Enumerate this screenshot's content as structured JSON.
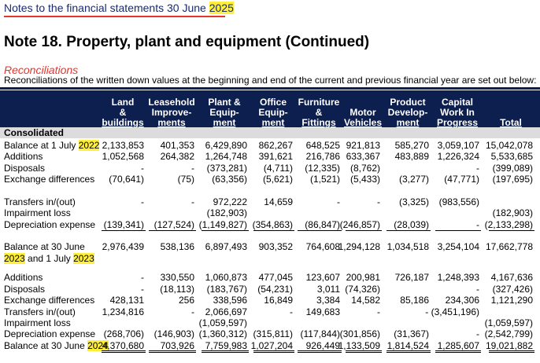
{
  "page_header": {
    "text": "Notes to the financial statements 30 June ",
    "year": "2025"
  },
  "title": "Note 18. Property, plant and equipment (Continued)",
  "section_heading": "Reconciliations",
  "intro": "Reconciliations of the written down values at the beginning and end of the current and previous financial year are set out below:",
  "columns": [
    {
      "l1": "Land",
      "l2": "&",
      "l3": "buildings",
      "unit": "$"
    },
    {
      "l1": "Leasehold",
      "l2": "Improve-",
      "l3": "ments",
      "unit": "$"
    },
    {
      "l1": "Plant &",
      "l2": "Equip-",
      "l3": "ment",
      "unit": "$"
    },
    {
      "l1": "Office",
      "l2": "Equip-",
      "l3": "ment",
      "unit": "$"
    },
    {
      "l1": "Furniture",
      "l2": "&",
      "l3": "Fittings",
      "unit": "$"
    },
    {
      "l1": "",
      "l2": "Motor",
      "l3": "Vehicles",
      "unit": "$"
    },
    {
      "l1": "Product",
      "l2": "Develop-",
      "l3": "ment",
      "unit": "$"
    },
    {
      "l1": "Capital",
      "l2": "Work In",
      "l3": "Progress",
      "unit": "$"
    },
    {
      "l1": "",
      "l2": "",
      "l3": "Total",
      "unit": "$"
    }
  ],
  "consolidated_label": "Consolidated",
  "rows": [
    {
      "label": "Balance at 1 July ",
      "hl": "2022",
      "values": [
        "2,133,853",
        "401,353",
        "6,429,890",
        "862,267",
        "648,525",
        "921,813",
        "585,270",
        "3,059,107",
        "15,042,078"
      ]
    },
    {
      "label": "Additions",
      "values": [
        "1,052,568",
        "264,382",
        "1,264,748",
        "391,621",
        "216,786",
        "633,367",
        "483,889",
        "1,226,324",
        "5,533,685"
      ]
    },
    {
      "label": "Disposals",
      "values": [
        "-",
        "-",
        "(373,281)",
        "(4,711)",
        "(12,335)",
        "(8,762)",
        "",
        "-",
        "(399,089)"
      ]
    },
    {
      "label": "Exchange differences",
      "values": [
        "(70,641)",
        "(75)",
        "(63,356)",
        "(5,621)",
        "(1,521)",
        "(5,433)",
        "(3,277)",
        "(47,771)",
        "(197,695)"
      ]
    },
    {
      "label": "Transfers in/(out)",
      "values": [
        "-",
        "-",
        "972,222",
        "14,659",
        "-",
        "-",
        "(3,325)",
        "(983,556)",
        ""
      ]
    },
    {
      "label": "Impairment loss",
      "values": [
        "",
        "",
        "(182,903)",
        "",
        "",
        "",
        "",
        "",
        "(182,903)"
      ]
    },
    {
      "label": "Depreciation expense",
      "values": [
        "(139,341)",
        "(127,524)",
        "(1,149,827)",
        "(354,863)",
        "(86,847)",
        "(246,857)",
        "(28,039)",
        "-",
        "(2,133,298)"
      ]
    },
    {
      "label": "Balance at 30 June",
      "label2a": "",
      "hl2a": "2023",
      "label2b": " and 1 July ",
      "hl2b": "2023",
      "values": [
        "2,976,439",
        "538,136",
        "6,897,493",
        "903,352",
        "764,608",
        "1,294,128",
        "1,034,518",
        "3,254,104",
        "17,662,778"
      ]
    },
    {
      "label": "Additions",
      "values": [
        "-",
        "330,550",
        "1,060,873",
        "477,045",
        "123,607",
        "200,981",
        "726,187",
        "1,248,393",
        "4,167,636"
      ]
    },
    {
      "label": "Disposals",
      "values": [
        "-",
        "(18,113)",
        "(183,767)",
        "(54,231)",
        "3,011",
        "(74,326)",
        "",
        "-",
        "(327,426)"
      ]
    },
    {
      "label": "Exchange differences",
      "values": [
        "428,131",
        "256",
        "338,596",
        "16,849",
        "3,384",
        "14,582",
        "85,186",
        "234,306",
        "1,121,290"
      ]
    },
    {
      "label": "Transfers in/(out)",
      "values": [
        "1,234,816",
        "-",
        "2,066,697",
        "-",
        "149,683",
        "-",
        "",
        "- (3,451,196)",
        ""
      ]
    },
    {
      "label": "Impairment loss",
      "values": [
        "",
        "",
        "(1,059,597)",
        "",
        "",
        "",
        "",
        "",
        "(1,059,597)"
      ]
    },
    {
      "label": "Depreciation expense",
      "values": [
        "(268,706)",
        "(146,903)",
        "(1,360,312)",
        "(315,811)",
        "(117,844)",
        "(301,856)",
        "(31,367)",
        "-",
        "(2,542,799)"
      ]
    },
    {
      "label": "Balance at 30 June ",
      "hl": "2024",
      "values": [
        "4,370,680",
        "703,926",
        "7,759,983",
        "1,027,204",
        "926,449",
        "1,133,509",
        "1,814,524",
        "1,285,607",
        "19,021,882"
      ]
    }
  ]
}
